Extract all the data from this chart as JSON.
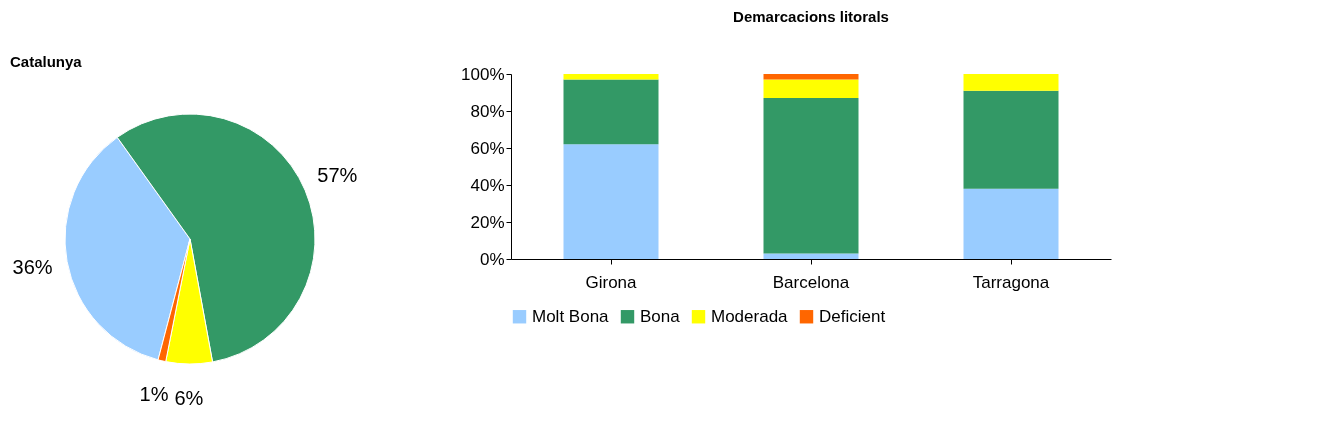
{
  "chart_data": [
    {
      "type": "pie",
      "title": "Catalunya",
      "categories": [
        null,
        null,
        null,
        null
      ],
      "values": [
        36,
        57,
        6,
        1
      ],
      "colors": [
        "#99ccff",
        "#339966",
        "#ffff00",
        "#ff6600"
      ],
      "value_labels": [
        "36%",
        "57%",
        "6%",
        "1%"
      ]
    },
    {
      "type": "bar",
      "title": "Demarcacions litorals",
      "categories": [
        "Girona",
        "Barcelona",
        "Tarragona"
      ],
      "stacked": true,
      "series": [
        {
          "name": "Molt Bona",
          "color": "#99ccff",
          "values": [
            62,
            3,
            38
          ]
        },
        {
          "name": "Bona",
          "color": "#339966",
          "values": [
            35,
            84,
            53
          ]
        },
        {
          "name": "Moderada",
          "color": "#ffff00",
          "values": [
            3,
            10,
            9
          ]
        },
        {
          "name": "Deficient",
          "color": "#ff6600",
          "values": [
            null,
            3,
            null
          ]
        }
      ],
      "ylim": [
        0,
        100
      ],
      "yticks": [
        {
          "value": 0,
          "label": "0%"
        },
        {
          "value": 20,
          "label": "20%"
        },
        {
          "value": 40,
          "label": "40%"
        },
        {
          "value": 60,
          "label": "60%"
        },
        {
          "value": 80,
          "label": "80%"
        },
        {
          "value": 100,
          "label": "100%"
        }
      ],
      "grid": false,
      "legend": "bottom"
    }
  ]
}
